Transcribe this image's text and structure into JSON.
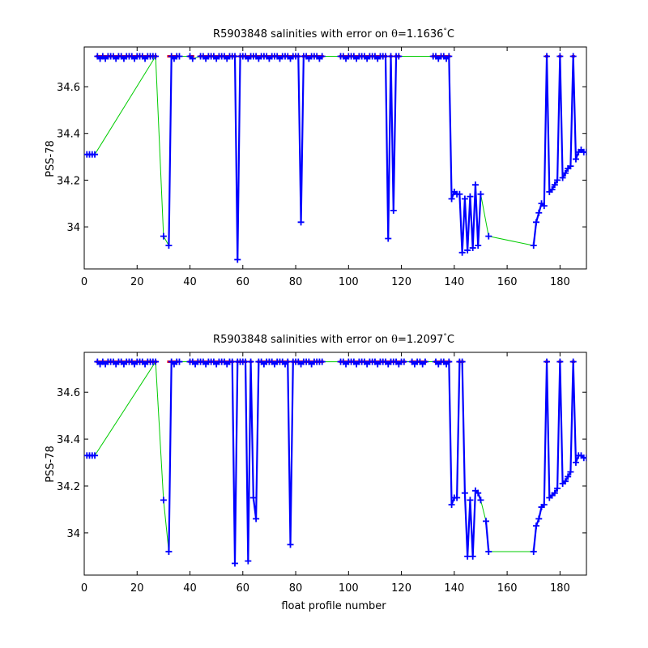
{
  "colors": {
    "salinity_line": "#0000ff",
    "salinity_marker": "#0000ff",
    "gap_line": "#00cc00",
    "error_marker": "#ff0000",
    "background": "#ffffff",
    "axes": "#000000"
  },
  "chart_data": [
    {
      "type": "line",
      "title": "R5903848 salinities with error on θ=1.1636°C",
      "title_parts": {
        "prefix": "R5903848 salinities with error on ",
        "theta": "θ",
        "value": "=1.1636",
        "deg": "°",
        "unit": "C"
      },
      "xlabel": "",
      "ylabel": "PSS-78",
      "xlim": [
        0,
        190
      ],
      "ylim": [
        33.82,
        34.77
      ],
      "xticks": [
        0,
        20,
        40,
        60,
        80,
        100,
        120,
        140,
        160,
        180
      ],
      "yticks": [
        34,
        34.2,
        34.4,
        34.6
      ],
      "ytick_labels": [
        "34",
        "34.2",
        "34.4",
        "34.6"
      ],
      "grid": false,
      "legend": "none",
      "error_level": 34.73,
      "series": [
        {
          "x": [
            1,
            2,
            3,
            4
          ],
          "y": [
            34.31,
            34.31,
            34.31,
            34.31
          ]
        },
        {
          "x": [
            5,
            6,
            7,
            8,
            9
          ],
          "y": [
            34.73,
            34.72,
            34.73,
            34.72,
            34.73
          ]
        },
        {
          "x": [
            10,
            11,
            12,
            13,
            14,
            15,
            16,
            17,
            18,
            19,
            20,
            21,
            22,
            23,
            24,
            25,
            26,
            27
          ],
          "y": [
            34.73,
            34.73,
            34.72,
            34.73,
            34.73,
            34.72,
            34.73,
            34.73,
            34.73,
            34.72,
            34.73,
            34.73,
            34.73,
            34.72,
            34.73,
            34.73,
            34.73,
            34.73
          ]
        },
        {
          "x": [
            30
          ],
          "y": [
            33.96
          ]
        },
        {
          "x": [
            32,
            33,
            34,
            35,
            36
          ],
          "y": [
            33.92,
            34.73,
            34.72,
            34.73,
            34.73
          ]
        },
        {
          "x": [
            40,
            41
          ],
          "y": [
            34.73,
            34.72
          ]
        },
        {
          "x": [
            44,
            45,
            46,
            47,
            48,
            49,
            50,
            51,
            52,
            53,
            54,
            55,
            56,
            57,
            58,
            59,
            60,
            61,
            62,
            63,
            64,
            65,
            66,
            67,
            68,
            69,
            70,
            71,
            72,
            73,
            74,
            75,
            76,
            77,
            78,
            79,
            80,
            81,
            82,
            83,
            84,
            85,
            86,
            87,
            88,
            89,
            90
          ],
          "y": [
            34.73,
            34.73,
            34.72,
            34.73,
            34.73,
            34.73,
            34.72,
            34.73,
            34.73,
            34.73,
            34.72,
            34.73,
            34.73,
            34.73,
            33.86,
            34.73,
            34.73,
            34.73,
            34.72,
            34.73,
            34.73,
            34.73,
            34.72,
            34.73,
            34.73,
            34.73,
            34.72,
            34.73,
            34.73,
            34.73,
            34.72,
            34.73,
            34.73,
            34.73,
            34.72,
            34.73,
            34.73,
            34.73,
            34.02,
            34.73,
            34.73,
            34.72,
            34.73,
            34.73,
            34.73,
            34.72,
            34.73
          ]
        },
        {
          "x": [
            97,
            98,
            99,
            100,
            101,
            102,
            103,
            104,
            105,
            106,
            107,
            108,
            109,
            110,
            111,
            112,
            113,
            114,
            115,
            116,
            117,
            118,
            119
          ],
          "y": [
            34.73,
            34.73,
            34.72,
            34.73,
            34.73,
            34.73,
            34.72,
            34.73,
            34.73,
            34.73,
            34.72,
            34.73,
            34.73,
            34.73,
            34.72,
            34.73,
            34.73,
            34.73,
            33.95,
            34.73,
            34.07,
            34.73,
            34.73
          ]
        },
        {
          "x": [
            132,
            133,
            134,
            135,
            136,
            137,
            138,
            139,
            140,
            141,
            142,
            143,
            144,
            145,
            146,
            147,
            148,
            149,
            150
          ],
          "y": [
            34.73,
            34.73,
            34.72,
            34.73,
            34.73,
            34.72,
            34.73,
            34.12,
            34.15,
            34.14,
            34.14,
            33.89,
            34.12,
            33.9,
            34.13,
            33.91,
            34.18,
            33.92,
            34.14
          ]
        },
        {
          "x": [
            153
          ],
          "y": [
            33.96
          ]
        },
        {
          "x": [
            170,
            171,
            172,
            173,
            174,
            175,
            176,
            177,
            178,
            179,
            180,
            181,
            182,
            183,
            184,
            185,
            186,
            187,
            188,
            189,
            190
          ],
          "y": [
            33.92,
            34.02,
            34.06,
            34.1,
            34.09,
            34.73,
            34.15,
            34.16,
            34.18,
            34.2,
            34.73,
            34.21,
            34.23,
            34.25,
            34.26,
            34.73,
            34.29,
            34.32,
            34.33,
            34.32,
            34.32
          ]
        }
      ],
      "gap_segments": [
        [
          4,
          27
        ],
        [
          27,
          30
        ],
        [
          30,
          32
        ],
        [
          36,
          40
        ],
        [
          41,
          44
        ],
        [
          90,
          97
        ],
        [
          119,
          132
        ],
        [
          150,
          153
        ],
        [
          153,
          170
        ]
      ],
      "error_markers": [
        5,
        6,
        7,
        8,
        9,
        10,
        11,
        12,
        13,
        14,
        15,
        16,
        17,
        18,
        19,
        20,
        21,
        22,
        23,
        24,
        25,
        26,
        27,
        32,
        33,
        34,
        35,
        40,
        41,
        44,
        45,
        46,
        47,
        48,
        49,
        50,
        51,
        52,
        53,
        54,
        55,
        56,
        57,
        59,
        60,
        61,
        62,
        63,
        64,
        65,
        66,
        67,
        68,
        69,
        70,
        71,
        72,
        73,
        74,
        75,
        76,
        77,
        78,
        79,
        80,
        81,
        83,
        84,
        85,
        86,
        87,
        88,
        89,
        90,
        97,
        98,
        99,
        100,
        101,
        102,
        103,
        104,
        105,
        106,
        107,
        108,
        109,
        110,
        111,
        112,
        113,
        114,
        116,
        118,
        119,
        132,
        133,
        134,
        135,
        136,
        137,
        138,
        175,
        180,
        185
      ]
    },
    {
      "type": "line",
      "title": "R5903848 salinities with error on θ=1.2097°C",
      "title_parts": {
        "prefix": "R5903848 salinities with error on ",
        "theta": "θ",
        "value": "=1.2097",
        "deg": "°",
        "unit": "C"
      },
      "xlabel": "float profile number",
      "ylabel": "PSS-78",
      "xlim": [
        0,
        190
      ],
      "ylim": [
        33.82,
        34.77
      ],
      "xticks": [
        0,
        20,
        40,
        60,
        80,
        100,
        120,
        140,
        160,
        180
      ],
      "yticks": [
        34,
        34.2,
        34.4,
        34.6
      ],
      "ytick_labels": [
        "34",
        "34.2",
        "34.4",
        "34.6"
      ],
      "grid": false,
      "legend": "none",
      "error_level": 34.73,
      "series": [
        {
          "x": [
            1,
            2,
            3,
            4
          ],
          "y": [
            34.33,
            34.33,
            34.33,
            34.33
          ]
        },
        {
          "x": [
            5,
            6,
            7,
            8,
            9,
            10,
            11,
            12,
            13,
            14,
            15,
            16,
            17,
            18,
            19,
            20,
            21,
            22,
            23,
            24,
            25,
            26,
            27
          ],
          "y": [
            34.73,
            34.72,
            34.73,
            34.72,
            34.73,
            34.73,
            34.73,
            34.72,
            34.73,
            34.73,
            34.72,
            34.73,
            34.73,
            34.73,
            34.72,
            34.73,
            34.73,
            34.73,
            34.72,
            34.73,
            34.73,
            34.73,
            34.73
          ]
        },
        {
          "x": [
            30
          ],
          "y": [
            34.14
          ]
        },
        {
          "x": [
            32,
            33,
            34,
            35,
            36
          ],
          "y": [
            33.92,
            34.73,
            34.72,
            34.73,
            34.73
          ]
        },
        {
          "x": [
            40,
            41,
            42,
            43,
            44,
            45,
            46,
            47,
            48,
            49,
            50,
            51,
            52,
            53,
            54,
            55,
            56,
            57,
            58,
            59,
            60,
            61,
            62,
            63,
            64,
            65,
            66,
            67,
            68,
            69,
            70,
            71,
            72,
            73,
            74,
            75,
            76,
            77,
            78,
            79,
            80,
            81,
            82,
            83,
            84,
            85,
            86,
            87,
            88,
            89,
            90
          ],
          "y": [
            34.73,
            34.73,
            34.72,
            34.73,
            34.73,
            34.73,
            34.72,
            34.73,
            34.73,
            34.73,
            34.72,
            34.73,
            34.73,
            34.73,
            34.72,
            34.73,
            34.73,
            33.87,
            34.73,
            34.73,
            34.73,
            34.73,
            33.88,
            34.73,
            34.15,
            34.06,
            34.73,
            34.73,
            34.72,
            34.73,
            34.73,
            34.73,
            34.72,
            34.73,
            34.73,
            34.73,
            34.72,
            34.73,
            33.95,
            34.73,
            34.73,
            34.73,
            34.72,
            34.73,
            34.73,
            34.73,
            34.72,
            34.73,
            34.73,
            34.73,
            34.73
          ]
        },
        {
          "x": [
            97,
            98,
            99,
            100,
            101,
            102,
            103,
            104,
            105,
            106,
            107,
            108,
            109,
            110,
            111,
            112,
            113,
            114,
            115,
            116,
            117,
            118,
            119,
            120,
            121
          ],
          "y": [
            34.73,
            34.73,
            34.72,
            34.73,
            34.73,
            34.73,
            34.72,
            34.73,
            34.73,
            34.73,
            34.72,
            34.73,
            34.73,
            34.73,
            34.72,
            34.73,
            34.73,
            34.73,
            34.72,
            34.73,
            34.73,
            34.73,
            34.72,
            34.73,
            34.73
          ]
        },
        {
          "x": [
            124,
            125,
            126,
            127,
            128,
            129
          ],
          "y": [
            34.73,
            34.72,
            34.73,
            34.73,
            34.72,
            34.73
          ]
        },
        {
          "x": [
            133,
            134,
            135,
            136,
            137,
            138,
            139,
            140,
            141,
            142,
            143,
            144,
            145,
            146,
            147,
            148,
            149,
            150
          ],
          "y": [
            34.73,
            34.72,
            34.73,
            34.73,
            34.72,
            34.73,
            34.12,
            34.15,
            34.15,
            34.73,
            34.73,
            34.17,
            33.9,
            34.14,
            33.9,
            34.18,
            34.17,
            34.14
          ]
        },
        {
          "x": [
            152,
            153
          ],
          "y": [
            34.05,
            33.92
          ]
        },
        {
          "x": [
            170,
            171,
            172,
            173,
            174,
            175,
            176,
            177,
            178,
            179,
            180,
            181,
            182,
            183,
            184,
            185,
            186,
            187,
            188,
            189,
            190
          ],
          "y": [
            33.92,
            34.03,
            34.06,
            34.11,
            34.12,
            34.73,
            34.15,
            34.16,
            34.17,
            34.19,
            34.73,
            34.21,
            34.22,
            34.24,
            34.26,
            34.73,
            34.3,
            34.33,
            34.33,
            34.32,
            34.32
          ]
        }
      ],
      "gap_segments": [
        [
          4,
          27
        ],
        [
          27,
          30
        ],
        [
          30,
          32
        ],
        [
          36,
          40
        ],
        [
          90,
          97
        ],
        [
          121,
          124
        ],
        [
          129,
          133
        ],
        [
          150,
          152
        ],
        [
          153,
          170
        ]
      ],
      "error_markers": [
        5,
        6,
        7,
        8,
        9,
        10,
        11,
        12,
        13,
        14,
        15,
        16,
        17,
        18,
        19,
        20,
        21,
        22,
        23,
        24,
        25,
        26,
        27,
        32,
        33,
        34,
        35,
        40,
        41,
        42,
        43,
        44,
        45,
        46,
        47,
        48,
        49,
        50,
        51,
        52,
        53,
        54,
        55,
        56,
        58,
        59,
        60,
        61,
        63,
        66,
        67,
        68,
        69,
        70,
        71,
        72,
        73,
        74,
        75,
        76,
        77,
        79,
        80,
        81,
        82,
        83,
        84,
        85,
        86,
        87,
        88,
        89,
        90,
        97,
        98,
        99,
        100,
        101,
        102,
        103,
        104,
        105,
        106,
        107,
        108,
        109,
        110,
        111,
        112,
        113,
        114,
        115,
        116,
        117,
        118,
        119,
        120,
        121,
        124,
        125,
        126,
        127,
        128,
        129,
        133,
        134,
        135,
        136,
        137,
        138,
        142,
        143,
        175,
        180,
        185
      ]
    }
  ]
}
